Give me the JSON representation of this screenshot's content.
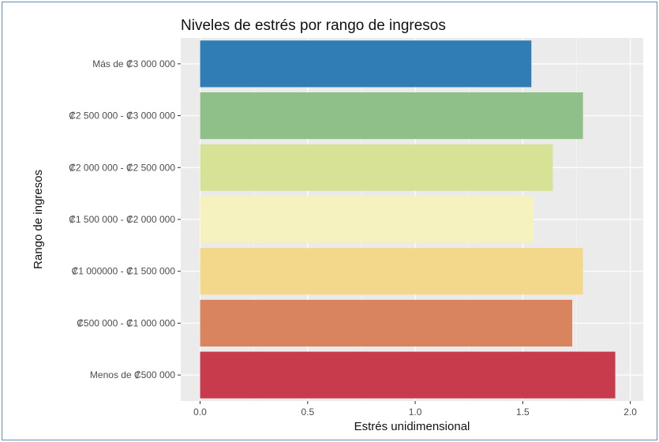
{
  "chart_data": {
    "type": "bar",
    "orientation": "horizontal",
    "title": "Niveles de estrés por rango de ingresos",
    "xlabel": "Estrés unidimensional",
    "ylabel": "Rango de ingresos",
    "xlim": [
      -0.09,
      2.06
    ],
    "x_ticks": [
      0.0,
      0.5,
      1.0,
      1.5,
      2.0
    ],
    "x_tick_labels": [
      "0.0",
      "0.5",
      "1.0",
      "1.5",
      "2.0"
    ],
    "grid": true,
    "legend": "none",
    "categories": [
      "Más de ₡3 000 000",
      "₡2 500 000 - ₡3 000 000",
      "₡2 000 000 - ₡2 500 000",
      "₡1 500 000 - ₡2 000 000",
      "₡1 000000 - ₡1 500 000",
      "₡500 000 - ₡1 000 000",
      "Menos de ₡500 000"
    ],
    "values": [
      1.54,
      1.78,
      1.64,
      1.55,
      1.78,
      1.73,
      1.93
    ],
    "colors": [
      "#2f7db4",
      "#8fc08a",
      "#d8e297",
      "#f5f2bf",
      "#f3d88b",
      "#d9845e",
      "#c73b4c"
    ]
  }
}
